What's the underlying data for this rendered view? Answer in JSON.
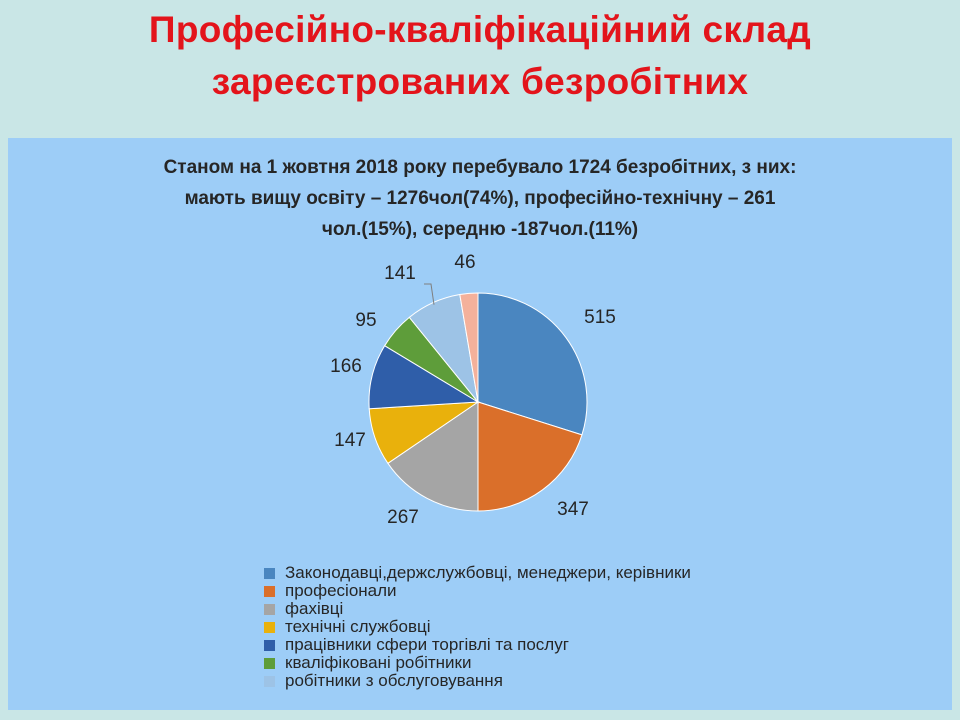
{
  "slide_title": {
    "line1": "Професійно-кваліфікаційний склад",
    "line2": "зареєстрованих безробітних"
  },
  "chart_data": {
    "type": "pie",
    "title_lines": [
      "Станом на 1 жовтня 2018 року перебувало 1724 безробітних, з них:",
      "мають вищу освіту – 1276чол(74%), професійно-технічну – 261",
      "чол.(15%), середню -187чол.(11%)"
    ],
    "categories": [
      "Законодавці,держслужбовці, менеджери, керівники",
      "професіонали",
      "фахівці",
      "технічні службовці",
      "працівники сфери торгівлі та послуг",
      "кваліфіковані робітники",
      "робітники з обслуговування",
      ""
    ],
    "values": [
      515,
      347,
      267,
      147,
      166,
      95,
      141,
      46
    ],
    "colors": [
      "#4a86c0",
      "#da6f2a",
      "#a5a5a5",
      "#e9b10c",
      "#2f5ea9",
      "#5e9d3a",
      "#9dc3e6",
      "#f4b19b"
    ],
    "legend_position": "bottom"
  }
}
